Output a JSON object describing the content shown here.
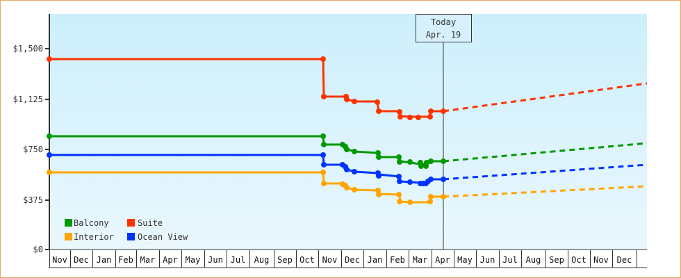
{
  "chart_data": {
    "type": "line",
    "title": "",
    "xlabel": "",
    "ylabel": "",
    "ylim": [
      0,
      1800
    ],
    "y_ticks": [
      "$0",
      "$375",
      "$750",
      "$1,125",
      "$1,500"
    ],
    "y_tick_values": [
      0,
      375,
      750,
      1125,
      1500
    ],
    "x_tick_labels": [
      "Nov",
      "Dec",
      "Jan",
      "Feb",
      "Mar",
      "Apr",
      "May",
      "Jun",
      "Jul",
      "Aug",
      "Sep",
      "Oct",
      "Nov",
      "Dec",
      "Jan",
      "Feb",
      "Mar",
      "Apr",
      "May",
      "Jun",
      "Jul",
      "Aug",
      "Sep",
      "Oct",
      "Nov",
      "Dec"
    ],
    "grid": false,
    "legend_position": "bottom-left inside",
    "annotation": {
      "line1": "Today",
      "line2": "Apr. 19"
    },
    "colors": {
      "Balcony": "#009900",
      "Suite": "#ff3300",
      "Interior": "#ffa500",
      "Ocean View": "#0033ff",
      "background_top": "#cceffc",
      "background_bottom": "#eaf7fd",
      "border": "#e8a860"
    },
    "series": [
      {
        "name": "Suite",
        "points": [
          {
            "x": "Nov (yr1)",
            "y": 1420
          },
          {
            "x": "Oct end",
            "y": 1420
          },
          {
            "x": "Nov 1",
            "y": 1140
          },
          {
            "x": "Nov 28",
            "y": 1140
          },
          {
            "x": "Dec 2",
            "y": 1110
          },
          {
            "x": "Dec 6",
            "y": 1100
          },
          {
            "x": "Jan 10",
            "y": 1100
          },
          {
            "x": "Jan 12",
            "y": 1030
          },
          {
            "x": "Feb 12",
            "y": 1030
          },
          {
            "x": "Feb 14",
            "y": 990
          },
          {
            "x": "Feb 25",
            "y": 985
          },
          {
            "x": "Mar 8",
            "y": 985
          },
          {
            "x": "Mar 25",
            "y": 985
          },
          {
            "x": "Mar 27",
            "y": 1035
          },
          {
            "x": "Apr 19",
            "y": 1035
          }
        ],
        "forecast": [
          {
            "x": "Apr 19",
            "y": 1035
          },
          {
            "x": "Dec end",
            "y": 1240
          }
        ]
      },
      {
        "name": "Balcony",
        "points": [
          {
            "x": "Nov (yr1)",
            "y": 846
          },
          {
            "x": "Oct end",
            "y": 846
          },
          {
            "x": "Nov 1",
            "y": 790
          },
          {
            "x": "Nov 28",
            "y": 790
          },
          {
            "x": "Dec 1",
            "y": 770
          },
          {
            "x": "Dec 6",
            "y": 740
          },
          {
            "x": "Jan 10",
            "y": 735
          },
          {
            "x": "Jan 12",
            "y": 720
          },
          {
            "x": "Feb 12",
            "y": 700
          },
          {
            "x": "Feb 14",
            "y": 675
          },
          {
            "x": "Feb 28",
            "y": 665
          },
          {
            "x": "Mar 15",
            "y": 655
          },
          {
            "x": "Mar 20",
            "y": 660
          },
          {
            "x": "Mar 27",
            "y": 665
          },
          {
            "x": "Apr 19",
            "y": 665
          }
        ],
        "forecast": [
          {
            "x": "Apr 19",
            "y": 665
          },
          {
            "x": "Dec end",
            "y": 800
          }
        ]
      },
      {
        "name": "Ocean View",
        "points": [
          {
            "x": "Nov (yr1)",
            "y": 706
          },
          {
            "x": "Oct end",
            "y": 706
          },
          {
            "x": "Nov 1",
            "y": 635
          },
          {
            "x": "Nov 28",
            "y": 630
          },
          {
            "x": "Dec 1",
            "y": 620
          },
          {
            "x": "Dec 6",
            "y": 590
          },
          {
            "x": "Jan 10",
            "y": 575
          },
          {
            "x": "Jan 12",
            "y": 560
          },
          {
            "x": "Feb 12",
            "y": 550
          },
          {
            "x": "Feb 14",
            "y": 510
          },
          {
            "x": "Feb 28",
            "y": 500
          },
          {
            "x": "Mar 15",
            "y": 495
          },
          {
            "x": "Mar 20",
            "y": 505
          },
          {
            "x": "Mar 27",
            "y": 525
          },
          {
            "x": "Apr 19",
            "y": 525
          }
        ],
        "forecast": [
          {
            "x": "Apr 19",
            "y": 525
          },
          {
            "x": "Dec end",
            "y": 635
          }
        ]
      },
      {
        "name": "Interior",
        "points": [
          {
            "x": "Nov (yr1)",
            "y": 576
          },
          {
            "x": "Oct end",
            "y": 576
          },
          {
            "x": "Nov 1",
            "y": 490
          },
          {
            "x": "Nov 28",
            "y": 485
          },
          {
            "x": "Dec 1",
            "y": 475
          },
          {
            "x": "Dec 6",
            "y": 445
          },
          {
            "x": "Jan 10",
            "y": 440
          },
          {
            "x": "Jan 12",
            "y": 420
          },
          {
            "x": "Feb 12",
            "y": 410
          },
          {
            "x": "Feb 14",
            "y": 365
          },
          {
            "x": "Feb 28",
            "y": 355
          },
          {
            "x": "Mar 25",
            "y": 355
          },
          {
            "x": "Mar 27",
            "y": 400
          },
          {
            "x": "Apr 19",
            "y": 400
          }
        ],
        "forecast": [
          {
            "x": "Apr 19",
            "y": 400
          },
          {
            "x": "Dec end",
            "y": 475
          }
        ]
      }
    ]
  },
  "legend": {
    "items": [
      {
        "label": "Balcony",
        "color": "#009900"
      },
      {
        "label": "Suite",
        "color": "#ff3300"
      },
      {
        "label": "Interior",
        "color": "#ffa500"
      },
      {
        "label": "Ocean View",
        "color": "#0033ff"
      }
    ]
  },
  "today_marker": {
    "line1": "Today",
    "line2": "Apr. 19"
  }
}
